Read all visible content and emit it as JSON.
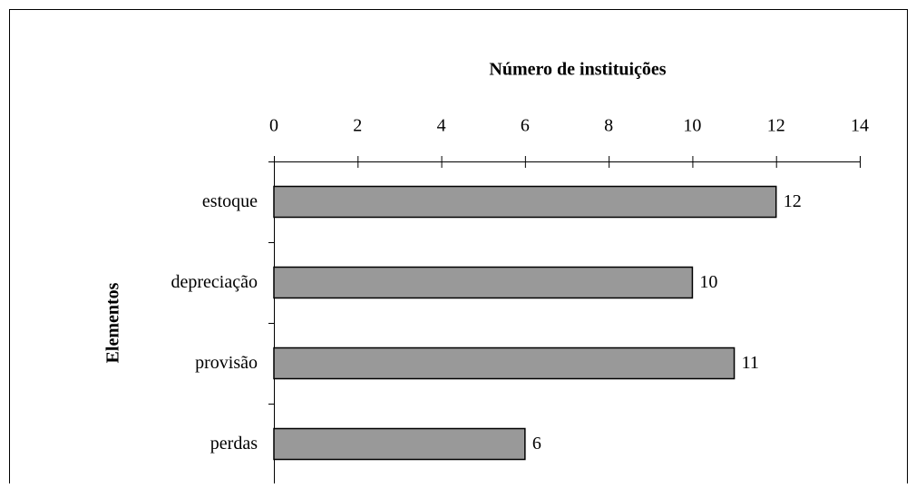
{
  "chart_data": {
    "type": "bar",
    "orientation": "horizontal",
    "x_label": "Número de instituições",
    "y_label": "Elementos",
    "categories": [
      "estoque",
      "depreciação",
      "provisão",
      "perdas"
    ],
    "values": [
      12,
      10,
      11,
      6
    ],
    "color": "#999999",
    "xlim": [
      0,
      14
    ],
    "xticks": [
      0,
      2,
      4,
      6,
      8,
      10,
      12,
      14
    ],
    "grid": false
  }
}
